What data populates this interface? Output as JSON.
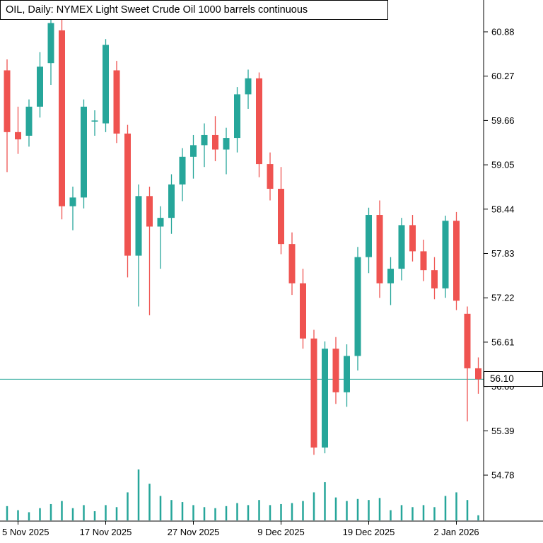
{
  "colors": {
    "background": "#ffffff",
    "bull": "#26a69a",
    "bear": "#ef5350",
    "axis": "#000000",
    "text": "#000000",
    "price_line": "#26a69a",
    "volume": "#26a69a"
  },
  "current_price": {
    "label": "56.10",
    "value": 56.1
  },
  "axes": {
    "price_ticks": [
      "60.88",
      "60.27",
      "59.66",
      "59.05",
      "58.44",
      "57.83",
      "57.22",
      "56.61",
      "56.00",
      "55.39",
      "54.78"
    ],
    "time_ticks": [
      {
        "label": "5 Nov 2025",
        "bar_index": 1
      },
      {
        "label": "17 Nov 2025",
        "bar_index": 9
      },
      {
        "label": "27 Nov 2025",
        "bar_index": 17
      },
      {
        "label": "9 Dec 2025",
        "bar_index": 25
      },
      {
        "label": "19 Dec 2025",
        "bar_index": 33
      },
      {
        "label": "2 Jan 2026",
        "bar_index": 41
      }
    ]
  },
  "chart_data": {
    "type": "candlestick",
    "title": "OIL, Daily:  NYMEX Light Sweet Crude Oil 1000 barrels continuous",
    "symbol": "OIL",
    "timeframe": "Daily",
    "grid": false,
    "legend": false,
    "ylim": [
      54.45,
      61.25
    ],
    "current_price_line": 56.1,
    "candles": [
      {
        "d": "2025-11-04",
        "o": 60.35,
        "h": 60.5,
        "l": 58.95,
        "c": 59.5,
        "v": 28
      },
      {
        "d": "2025-11-05",
        "o": 59.5,
        "h": 59.85,
        "l": 59.2,
        "c": 59.4,
        "v": 20
      },
      {
        "d": "2025-11-06",
        "o": 59.45,
        "h": 59.95,
        "l": 59.3,
        "c": 59.85,
        "v": 16
      },
      {
        "d": "2025-11-07",
        "o": 59.85,
        "h": 60.6,
        "l": 59.7,
        "c": 60.4,
        "v": 24
      },
      {
        "d": "2025-11-10",
        "o": 60.45,
        "h": 61.1,
        "l": 60.15,
        "c": 61.0,
        "v": 32
      },
      {
        "d": "2025-11-11",
        "o": 60.9,
        "h": 61.05,
        "l": 58.3,
        "c": 58.48,
        "v": 38
      },
      {
        "d": "2025-11-12",
        "o": 58.48,
        "h": 58.75,
        "l": 58.15,
        "c": 58.6,
        "v": 24
      },
      {
        "d": "2025-11-13",
        "o": 58.6,
        "h": 59.95,
        "l": 58.45,
        "c": 59.85,
        "v": 30
      },
      {
        "d": "2025-11-14",
        "o": 59.66,
        "h": 59.8,
        "l": 59.45,
        "c": 59.66,
        "v": 18
      },
      {
        "d": "2025-11-17",
        "o": 59.62,
        "h": 60.78,
        "l": 59.5,
        "c": 60.7,
        "v": 30
      },
      {
        "d": "2025-11-18",
        "o": 60.35,
        "h": 60.48,
        "l": 59.35,
        "c": 59.48,
        "v": 26
      },
      {
        "d": "2025-11-19",
        "o": 59.48,
        "h": 59.6,
        "l": 57.5,
        "c": 57.8,
        "v": 55
      },
      {
        "d": "2025-11-20",
        "o": 57.8,
        "h": 58.78,
        "l": 57.1,
        "c": 58.62,
        "v": 100
      },
      {
        "d": "2025-11-21",
        "o": 58.62,
        "h": 58.75,
        "l": 56.98,
        "c": 58.2,
        "v": 72
      },
      {
        "d": "2025-11-24",
        "o": 58.2,
        "h": 58.48,
        "l": 57.62,
        "c": 58.32,
        "v": 48
      },
      {
        "d": "2025-11-25",
        "o": 58.32,
        "h": 58.92,
        "l": 58.1,
        "c": 58.78,
        "v": 40
      },
      {
        "d": "2025-11-26",
        "o": 58.78,
        "h": 59.28,
        "l": 58.55,
        "c": 59.16,
        "v": 36
      },
      {
        "d": "2025-11-27",
        "o": 59.16,
        "h": 59.46,
        "l": 58.86,
        "c": 59.32,
        "v": 30
      },
      {
        "d": "2025-11-28",
        "o": 59.32,
        "h": 59.62,
        "l": 59.02,
        "c": 59.46,
        "v": 26
      },
      {
        "d": "2025-12-01",
        "o": 59.46,
        "h": 59.72,
        "l": 59.1,
        "c": 59.26,
        "v": 24
      },
      {
        "d": "2025-12-02",
        "o": 59.26,
        "h": 59.56,
        "l": 58.92,
        "c": 59.42,
        "v": 28
      },
      {
        "d": "2025-12-03",
        "o": 59.42,
        "h": 60.12,
        "l": 59.22,
        "c": 60.02,
        "v": 34
      },
      {
        "d": "2025-12-04",
        "o": 60.02,
        "h": 60.36,
        "l": 59.82,
        "c": 60.24,
        "v": 30
      },
      {
        "d": "2025-12-05",
        "o": 60.24,
        "h": 60.32,
        "l": 58.88,
        "c": 59.06,
        "v": 40
      },
      {
        "d": "2025-12-08",
        "o": 59.06,
        "h": 59.22,
        "l": 58.56,
        "c": 58.72,
        "v": 30
      },
      {
        "d": "2025-12-09",
        "o": 58.72,
        "h": 59.02,
        "l": 57.82,
        "c": 57.96,
        "v": 32
      },
      {
        "d": "2025-12-10",
        "o": 57.96,
        "h": 58.12,
        "l": 57.26,
        "c": 57.42,
        "v": 34
      },
      {
        "d": "2025-12-11",
        "o": 57.42,
        "h": 57.62,
        "l": 56.52,
        "c": 56.66,
        "v": 38
      },
      {
        "d": "2025-12-12",
        "o": 56.66,
        "h": 56.78,
        "l": 55.06,
        "c": 55.16,
        "v": 55
      },
      {
        "d": "2025-12-15",
        "o": 55.16,
        "h": 56.62,
        "l": 55.08,
        "c": 56.52,
        "v": 75
      },
      {
        "d": "2025-12-16",
        "o": 56.52,
        "h": 56.68,
        "l": 55.76,
        "c": 55.92,
        "v": 45
      },
      {
        "d": "2025-12-17",
        "o": 55.92,
        "h": 56.58,
        "l": 55.72,
        "c": 56.42,
        "v": 38
      },
      {
        "d": "2025-12-18",
        "o": 56.42,
        "h": 57.92,
        "l": 56.22,
        "c": 57.78,
        "v": 42
      },
      {
        "d": "2025-12-19",
        "o": 57.78,
        "h": 58.46,
        "l": 57.56,
        "c": 58.36,
        "v": 40
      },
      {
        "d": "2025-12-22",
        "o": 58.36,
        "h": 58.56,
        "l": 57.22,
        "c": 57.42,
        "v": 44
      },
      {
        "d": "2025-12-23",
        "o": 57.42,
        "h": 57.78,
        "l": 57.12,
        "c": 57.62,
        "v": 20
      },
      {
        "d": "2025-12-24",
        "o": 57.62,
        "h": 58.32,
        "l": 57.46,
        "c": 58.22,
        "v": 30
      },
      {
        "d": "2025-12-26",
        "o": 58.22,
        "h": 58.36,
        "l": 57.72,
        "c": 57.86,
        "v": 26
      },
      {
        "d": "2025-12-29",
        "o": 57.86,
        "h": 58.02,
        "l": 57.45,
        "c": 57.6,
        "v": 30
      },
      {
        "d": "2025-12-30",
        "o": 57.6,
        "h": 57.78,
        "l": 57.2,
        "c": 57.35,
        "v": 26
      },
      {
        "d": "2025-12-31",
        "o": 57.35,
        "h": 58.35,
        "l": 57.22,
        "c": 58.28,
        "v": 48
      },
      {
        "d": "2026-01-02",
        "o": 58.28,
        "h": 58.4,
        "l": 57.05,
        "c": 57.18,
        "v": 55
      },
      {
        "d": "2026-01-05",
        "o": 57.0,
        "h": 57.1,
        "l": 55.52,
        "c": 56.25,
        "v": 40
      },
      {
        "d": "2026-01-06",
        "o": 56.25,
        "h": 56.4,
        "l": 55.9,
        "c": 56.1,
        "v": 10
      }
    ]
  }
}
